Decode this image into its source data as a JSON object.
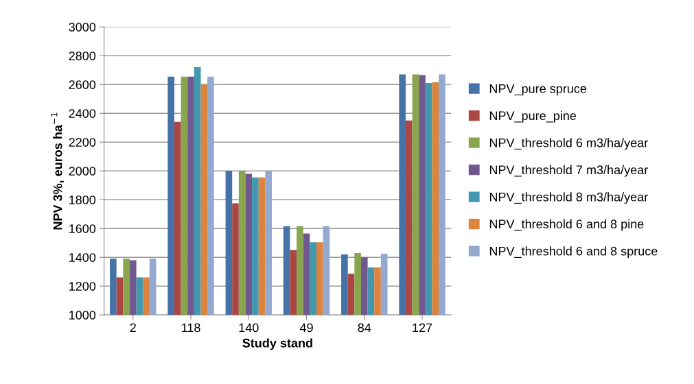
{
  "chart_data": {
    "type": "bar",
    "xlabel": "Study stand",
    "ylabel": "NPV 3%, euros ha$^{−1}$",
    "categories": [
      "2",
      "118",
      "140",
      "49",
      "84",
      "127"
    ],
    "ylim": [
      1000,
      3000
    ],
    "yticks": [
      1000,
      1200,
      1400,
      1600,
      1800,
      2000,
      2200,
      2400,
      2600,
      2800,
      3000
    ],
    "grid": "y",
    "legend": "right",
    "series": [
      {
        "name": "NPV_pure spruce",
        "color": "#4572a7",
        "values": [
          1390,
          2655,
          2000,
          1615,
          1420,
          2670
        ]
      },
      {
        "name": "NPV_pure_pine",
        "color": "#aa4643",
        "values": [
          1260,
          2340,
          1775,
          1450,
          1285,
          2350
        ]
      },
      {
        "name": "NPV_threshold 6 m3/ha/year",
        "color": "#89a54e",
        "values": [
          1390,
          2655,
          2000,
          1615,
          1430,
          2670
        ]
      },
      {
        "name": "NPV_threshold 7 m3/ha/year",
        "color": "#71588f",
        "values": [
          1380,
          2655,
          1980,
          1565,
          1400,
          2665
        ]
      },
      {
        "name": "NPV_threshold 8 m3/ha/year",
        "color": "#4198af",
        "values": [
          1260,
          2720,
          1955,
          1505,
          1330,
          2610
        ]
      },
      {
        "name": "NPV_threshold 6 and 8 pine",
        "color": "#db843d",
        "values": [
          1260,
          2600,
          1955,
          1505,
          1330,
          2615
        ]
      },
      {
        "name": "NPV_threshold 6 and 8 spruce",
        "color": "#93a9cf",
        "values": [
          1390,
          2655,
          2000,
          1615,
          1425,
          2670
        ]
      }
    ]
  }
}
